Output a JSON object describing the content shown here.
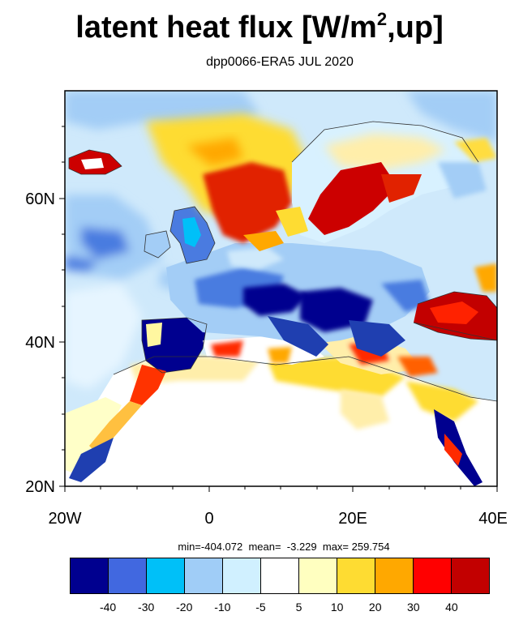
{
  "title": {
    "main": "latent heat flux [W/m",
    "sup": "2",
    "tail": ",up]"
  },
  "subtitle": "dpp0066-ERA5  JUL 2020",
  "axes": {
    "lat_ticks": [
      "20N",
      "40N",
      "60N"
    ],
    "lon_ticks": [
      "20W",
      "0",
      "20E",
      "40E"
    ]
  },
  "stats": {
    "text": "min=-404.072  mean=  -3.229  max= 259.754"
  },
  "legend": {
    "colors": [
      "#00008f",
      "#4168e0",
      "#00c0f8",
      "#a0cdf7",
      "#d0f0ff",
      "#ffffff",
      "#ffffc0",
      "#fedc32",
      "#ffa800",
      "#ff0000",
      "#c20000"
    ],
    "labels": [
      "-40",
      "-30",
      "-20",
      "-10",
      "-5",
      "5",
      "10",
      "20",
      "30",
      "40"
    ]
  }
}
